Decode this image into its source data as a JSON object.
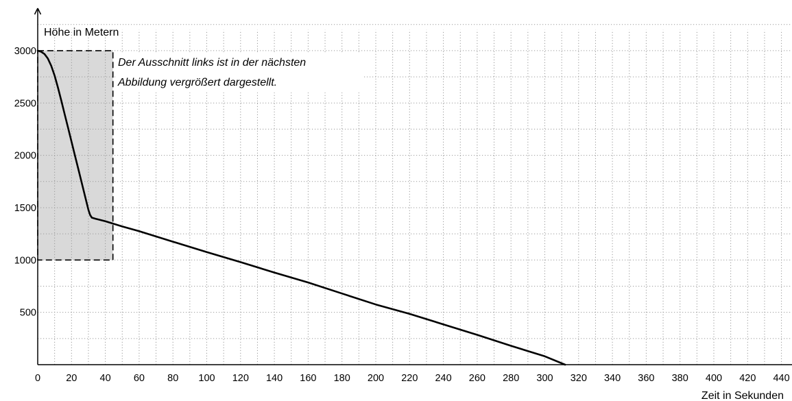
{
  "chart_data": {
    "type": "line",
    "title": "",
    "ylabel": "Höhe in Metern",
    "xlabel": "Zeit in Sekunden",
    "xlim": [
      0,
      450
    ],
    "ylim": [
      0,
      3250
    ],
    "xticks": [
      0,
      20,
      40,
      60,
      80,
      100,
      120,
      140,
      160,
      180,
      200,
      220,
      240,
      260,
      280,
      300,
      320,
      340,
      360,
      380,
      400,
      420,
      440
    ],
    "yticks": [
      500,
      1000,
      1500,
      2000,
      2500,
      3000
    ],
    "grid": true,
    "grid_x_step": 10,
    "grid_y_step": 250,
    "highlight_region": {
      "x": [
        0,
        44.5
      ],
      "y": [
        1000,
        3000
      ],
      "fill": "#d9d9d9",
      "border": "dashed"
    },
    "annotation": [
      "Der Ausschnitt links ist in der nächsten",
      "Abbildung vergrößert dargestellt."
    ],
    "series": [
      {
        "color": "#000000",
        "points": [
          [
            0,
            3000
          ],
          [
            2,
            2990
          ],
          [
            4,
            2968
          ],
          [
            6,
            2925
          ],
          [
            8,
            2855
          ],
          [
            10,
            2760
          ],
          [
            12,
            2645
          ],
          [
            14,
            2520
          ],
          [
            16,
            2390
          ],
          [
            18,
            2260
          ],
          [
            20,
            2130
          ],
          [
            22,
            2000
          ],
          [
            24,
            1870
          ],
          [
            26,
            1740
          ],
          [
            28,
            1610
          ],
          [
            30,
            1480
          ],
          [
            31,
            1430
          ],
          [
            32,
            1405
          ],
          [
            34,
            1395
          ],
          [
            40,
            1370
          ],
          [
            50,
            1320
          ],
          [
            60,
            1275
          ],
          [
            80,
            1175
          ],
          [
            100,
            1075
          ],
          [
            120,
            980
          ],
          [
            140,
            880
          ],
          [
            160,
            785
          ],
          [
            180,
            680
          ],
          [
            200,
            575
          ],
          [
            220,
            485
          ],
          [
            240,
            385
          ],
          [
            260,
            285
          ],
          [
            280,
            180
          ],
          [
            300,
            80
          ],
          [
            312,
            0
          ]
        ]
      }
    ]
  }
}
